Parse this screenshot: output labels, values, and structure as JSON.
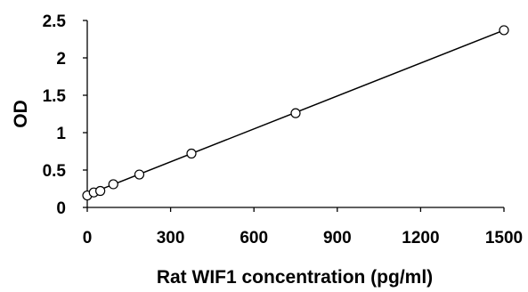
{
  "chart_data": {
    "type": "scatter",
    "title": "",
    "xlabel": "Rat WIF1 concentration (pg/ml)",
    "ylabel": "OD",
    "xlim": [
      0,
      1500
    ],
    "ylim": [
      0,
      2.5
    ],
    "x_ticks": [
      0,
      300,
      600,
      900,
      1200,
      1500
    ],
    "y_ticks": [
      0,
      0.5,
      1,
      1.5,
      2,
      2.5
    ],
    "x_tick_labels": [
      "0",
      "300",
      "600",
      "900",
      "1200",
      "1500"
    ],
    "y_tick_labels": [
      "0",
      "0.5",
      "1",
      "1.5",
      "2",
      "2.5"
    ],
    "grid": false,
    "legend": "none",
    "series": [
      {
        "marker": "open-circle",
        "x": [
          0,
          23.4,
          46.9,
          93.8,
          187.5,
          375,
          750,
          1500
        ],
        "y": [
          0.16,
          0.2,
          0.22,
          0.31,
          0.44,
          0.72,
          1.26,
          2.37
        ]
      }
    ],
    "trendline": {
      "type": "linear",
      "x": [
        0,
        1500
      ],
      "y": [
        0.17,
        2.37
      ]
    },
    "colors": {
      "axis": "#000000",
      "marker_stroke": "#000000",
      "marker_fill": "#ffffff",
      "line": "#000000"
    }
  }
}
